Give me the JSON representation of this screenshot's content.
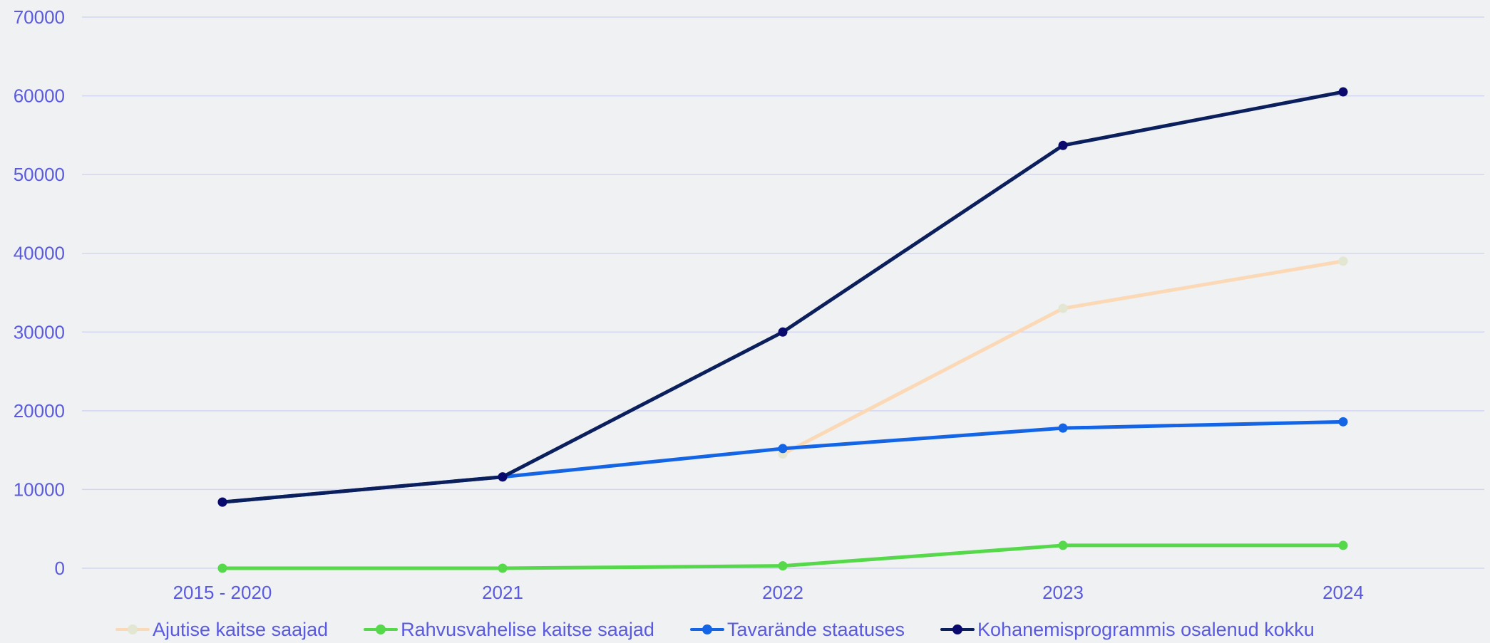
{
  "colors": {
    "background": "#eff1f3",
    "axis_text": "#5a5ae0",
    "grid": "#d3d6f2"
  },
  "chart_data": {
    "type": "line",
    "title": "",
    "xlabel": "",
    "ylabel": "",
    "categories": [
      "2015 - 2020",
      "2021",
      "2022",
      "2023",
      "2024"
    ],
    "ylim": [
      0,
      70000
    ],
    "yticks": [
      "0",
      "10000",
      "20000",
      "30000",
      "40000",
      "50000",
      "60000",
      "70000"
    ],
    "grid": true,
    "legend_position": "bottom",
    "series": [
      {
        "name": "Ajutise kaitse saajad",
        "color": "#fcd9b6",
        "marker_color": "#e3e6d1",
        "values": [
          null,
          null,
          14500,
          33000,
          39000
        ]
      },
      {
        "name": "Rahvusvahelise kaitse saajad",
        "color": "#55d84a",
        "marker_color": "#55d84a",
        "values": [
          0,
          0,
          300,
          2900,
          2900
        ]
      },
      {
        "name": "Tavarände staatuses",
        "color": "#1464e6",
        "marker_color": "#1464e6",
        "values": [
          8400,
          11600,
          15200,
          17800,
          18600
        ]
      },
      {
        "name": "Kohanemisprogrammis osalenud kokku",
        "color": "#0a1f5c",
        "marker_color": "#0a0a6e",
        "values": [
          8400,
          11600,
          30000,
          53700,
          60500
        ]
      }
    ]
  }
}
